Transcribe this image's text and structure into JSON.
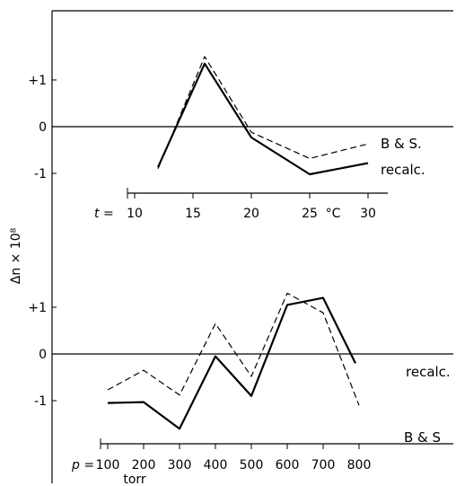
{
  "chart_data": [
    {
      "type": "line",
      "xlabel_prefix": "t =",
      "xunit": "°C",
      "x_ticks": [
        10,
        15,
        20,
        25,
        30
      ],
      "xlim": [
        10,
        31
      ],
      "y_ticks": [
        {
          "value": 1,
          "label": "+1"
        },
        {
          "value": 0,
          "label": "0"
        },
        {
          "value": -1,
          "label": "-1"
        }
      ],
      "series": [
        {
          "name": "recalc.",
          "style": "solid",
          "x": [
            12,
            16,
            20,
            25,
            30
          ],
          "y": [
            -0.87,
            1.35,
            -0.23,
            -1.02,
            -0.78
          ]
        },
        {
          "name": "B & S.",
          "style": "dashed",
          "x": [
            12,
            16,
            20,
            25,
            30
          ],
          "y": [
            -0.9,
            1.5,
            -0.12,
            -0.68,
            -0.37
          ]
        }
      ]
    },
    {
      "type": "line",
      "xlabel_prefix": "p =",
      "xlabel": "torr",
      "x_ticks": [
        100,
        200,
        300,
        400,
        500,
        600,
        700,
        800
      ],
      "xlim": [
        100,
        870
      ],
      "y_ticks": [
        {
          "value": 1,
          "label": "+1"
        },
        {
          "value": 0,
          "label": "0"
        },
        {
          "value": -1,
          "label": "-1"
        }
      ],
      "series": [
        {
          "name": "recalc.",
          "style": "solid",
          "x": [
            100,
            200,
            300,
            400,
            500,
            600,
            700,
            790
          ],
          "y": [
            -1.05,
            -1.03,
            -1.6,
            -0.05,
            -0.9,
            1.05,
            1.2,
            -0.2
          ]
        },
        {
          "name": "B & S",
          "style": "dashed",
          "x": [
            100,
            200,
            300,
            400,
            500,
            600,
            700,
            800
          ],
          "y": [
            -0.77,
            -0.35,
            -0.88,
            0.65,
            -0.48,
            1.3,
            0.88,
            -1.1
          ]
        }
      ]
    }
  ],
  "ylabel": "Δn × 10⁸"
}
